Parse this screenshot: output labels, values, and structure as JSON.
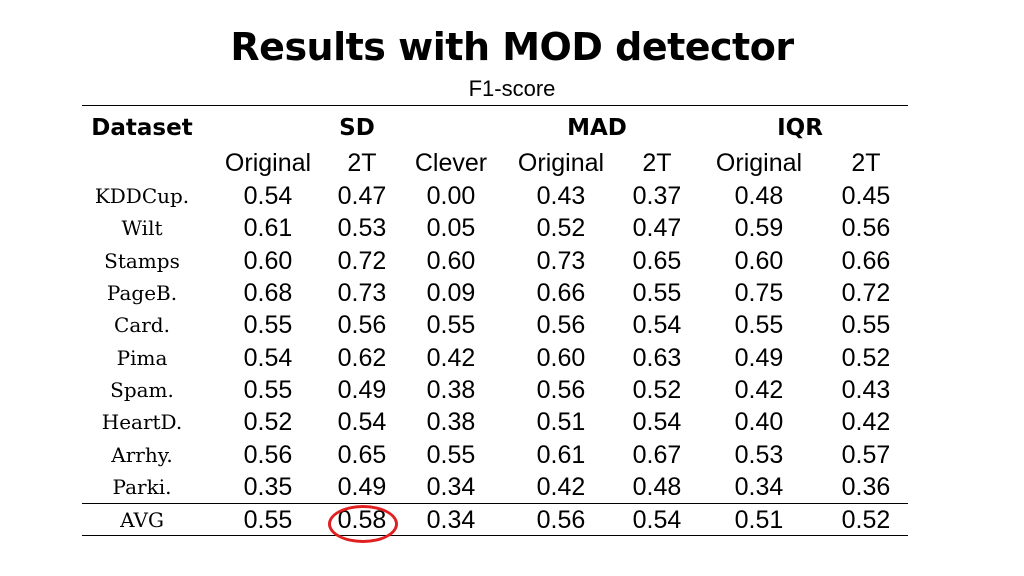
{
  "title": "Results with MOD detector",
  "subtitle": "F1-score",
  "header": {
    "dataset": "Dataset",
    "groups": [
      "SD",
      "MAD",
      "IQR"
    ],
    "subcolumns": [
      "Original",
      "2T",
      "Clever",
      "Original",
      "2T",
      "Original",
      "2T"
    ]
  },
  "rows": [
    {
      "name": "KDDCup.",
      "values": [
        "0.54",
        "0.47",
        "0.00",
        "0.43",
        "0.37",
        "0.48",
        "0.45"
      ]
    },
    {
      "name": "Wilt",
      "values": [
        "0.61",
        "0.53",
        "0.05",
        "0.52",
        "0.47",
        "0.59",
        "0.56"
      ]
    },
    {
      "name": "Stamps",
      "values": [
        "0.60",
        "0.72",
        "0.60",
        "0.73",
        "0.65",
        "0.60",
        "0.66"
      ]
    },
    {
      "name": "PageB.",
      "values": [
        "0.68",
        "0.73",
        "0.09",
        "0.66",
        "0.55",
        "0.75",
        "0.72"
      ]
    },
    {
      "name": "Card.",
      "values": [
        "0.55",
        "0.56",
        "0.55",
        "0.56",
        "0.54",
        "0.55",
        "0.55"
      ]
    },
    {
      "name": "Pima",
      "values": [
        "0.54",
        "0.62",
        "0.42",
        "0.60",
        "0.63",
        "0.49",
        "0.52"
      ]
    },
    {
      "name": "Spam.",
      "values": [
        "0.55",
        "0.49",
        "0.38",
        "0.56",
        "0.52",
        "0.42",
        "0.43"
      ]
    },
    {
      "name": "HeartD.",
      "values": [
        "0.52",
        "0.54",
        "0.38",
        "0.51",
        "0.54",
        "0.40",
        "0.42"
      ]
    },
    {
      "name": "Arrhy.",
      "values": [
        "0.56",
        "0.65",
        "0.55",
        "0.61",
        "0.67",
        "0.53",
        "0.57"
      ]
    },
    {
      "name": "Parki.",
      "values": [
        "0.35",
        "0.49",
        "0.34",
        "0.42",
        "0.48",
        "0.34",
        "0.36"
      ]
    },
    {
      "name": "AVG",
      "values": [
        "0.55",
        "0.58",
        "0.34",
        "0.56",
        "0.54",
        "0.51",
        "0.52"
      ]
    }
  ],
  "highlight": {
    "row": "AVG",
    "column": "SD 2T",
    "value": "0.58",
    "color": "#e02020"
  }
}
